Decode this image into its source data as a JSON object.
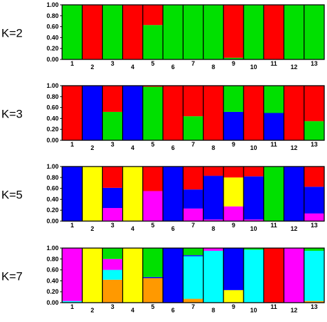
{
  "chart_data": [
    {
      "type": "bar",
      "stacked": true,
      "panel_label": "K=2",
      "categories": [
        "1",
        "2",
        "3",
        "4",
        "5",
        "6",
        "7",
        "8",
        "9",
        "10",
        "11",
        "12",
        "13"
      ],
      "ylim": [
        0,
        1
      ],
      "yticks": [
        "0.00",
        "0.20",
        "0.40",
        "0.60",
        "0.80",
        "1.00"
      ],
      "series": [
        {
          "color": "#00e000",
          "values": [
            1.0,
            0.0,
            1.0,
            0.0,
            0.63,
            1.0,
            1.0,
            1.0,
            0.03,
            1.0,
            0.0,
            1.0,
            1.0
          ]
        },
        {
          "color": "#ff0000",
          "values": [
            0.0,
            1.0,
            0.0,
            1.0,
            0.37,
            0.0,
            0.0,
            0.0,
            0.97,
            0.0,
            1.0,
            0.0,
            0.0
          ]
        }
      ]
    },
    {
      "type": "bar",
      "stacked": true,
      "panel_label": "K=3",
      "categories": [
        "1",
        "2",
        "3",
        "4",
        "5",
        "6",
        "7",
        "8",
        "9",
        "10",
        "11",
        "12",
        "13"
      ],
      "ylim": [
        0,
        1
      ],
      "yticks": [
        "0.00",
        "0.20",
        "0.40",
        "0.60",
        "0.80",
        "1.00"
      ],
      "series": [
        {
          "color": "#00e000",
          "values": [
            0.0,
            0.0,
            0.52,
            0.0,
            0.98,
            0.0,
            0.44,
            0.0,
            0.0,
            0.0,
            0.0,
            0.0,
            0.35
          ]
        },
        {
          "color": "#0000ff",
          "values": [
            0.0,
            1.0,
            0.0,
            1.0,
            0.0,
            0.0,
            0.0,
            0.0,
            0.52,
            0.0,
            0.5,
            0.0,
            0.0
          ]
        },
        {
          "color": "#00e000",
          "values": [
            0.0,
            0.0,
            0.0,
            0.0,
            0.0,
            0.0,
            0.0,
            0.0,
            0.48,
            0.0,
            0.5,
            0.0,
            0.0
          ]
        },
        {
          "color": "#ff0000",
          "values": [
            1.0,
            0.0,
            0.48,
            0.0,
            0.02,
            1.0,
            0.56,
            1.0,
            0.0,
            1.0,
            0.0,
            1.0,
            0.65
          ]
        }
      ]
    },
    {
      "type": "bar",
      "stacked": true,
      "panel_label": "K=5",
      "categories": [
        "1",
        "2",
        "3",
        "4",
        "5",
        "6",
        "7",
        "8",
        "9",
        "10",
        "11",
        "12",
        "13"
      ],
      "ylim": [
        0,
        1
      ],
      "yticks": [
        "0.00",
        "0.20",
        "0.40",
        "0.60",
        "0.80",
        "1.00"
      ],
      "series": [
        {
          "color": "#ff00ff",
          "values": [
            0.0,
            0.0,
            0.24,
            0.0,
            0.55,
            0.0,
            0.23,
            0.03,
            0.27,
            0.03,
            0.0,
            0.0,
            0.14
          ]
        },
        {
          "color": "#ffff00",
          "values": [
            0.0,
            1.0,
            0.0,
            1.0,
            0.0,
            0.0,
            0.0,
            0.0,
            0.53,
            0.0,
            0.0,
            0.0,
            0.0
          ]
        },
        {
          "color": "#0000ff",
          "values": [
            1.0,
            0.0,
            0.37,
            0.0,
            0.0,
            1.0,
            0.35,
            0.8,
            0.0,
            0.79,
            0.0,
            1.0,
            0.49
          ]
        },
        {
          "color": "#00e000",
          "values": [
            0.0,
            0.0,
            0.0,
            0.0,
            0.0,
            0.0,
            0.0,
            0.0,
            0.0,
            0.0,
            1.0,
            0.0,
            0.0
          ]
        },
        {
          "color": "#ff0000",
          "values": [
            0.0,
            0.0,
            0.39,
            0.0,
            0.45,
            0.0,
            0.42,
            0.17,
            0.2,
            0.18,
            0.0,
            0.0,
            0.37
          ]
        }
      ]
    },
    {
      "type": "bar",
      "stacked": true,
      "panel_label": "K=7",
      "categories": [
        "1",
        "2",
        "3",
        "4",
        "5",
        "6",
        "7",
        "8",
        "9",
        "10",
        "11",
        "12",
        "13"
      ],
      "ylim": [
        0,
        1
      ],
      "yticks": [
        "0.00",
        "0.20",
        "0.40",
        "0.60",
        "0.80",
        "1.00"
      ],
      "series": [
        {
          "color": "#00ffff",
          "values": [
            0.03,
            0.0,
            0.0,
            0.0,
            0.0,
            0.0,
            0.0,
            0.0,
            0.0,
            0.0,
            0.0,
            0.0,
            0.0
          ]
        },
        {
          "color": "#ff9900",
          "values": [
            0.0,
            0.0,
            0.42,
            0.0,
            0.45,
            0.0,
            0.07,
            0.0,
            0.0,
            0.0,
            0.0,
            0.0,
            0.03
          ]
        },
        {
          "color": "#ffff00",
          "values": [
            0.0,
            1.0,
            0.0,
            1.0,
            0.0,
            0.0,
            0.0,
            0.0,
            0.23,
            0.0,
            0.0,
            0.0,
            0.0
          ]
        },
        {
          "color": "#00ffff",
          "values": [
            0.0,
            0.0,
            0.18,
            0.0,
            0.0,
            0.0,
            0.78,
            0.95,
            0.0,
            0.97,
            0.0,
            0.0,
            0.92
          ]
        },
        {
          "color": "#0000ff",
          "values": [
            0.0,
            0.0,
            0.0,
            0.0,
            0.02,
            1.0,
            0.02,
            0.0,
            0.77,
            0.0,
            0.0,
            0.0,
            0.0
          ]
        },
        {
          "color": "#ff00ff",
          "values": [
            0.97,
            0.0,
            0.2,
            0.0,
            0.0,
            0.0,
            0.0,
            0.05,
            0.0,
            0.0,
            0.0,
            1.0,
            0.0
          ]
        },
        {
          "color": "#00e000",
          "values": [
            0.0,
            0.0,
            0.2,
            0.0,
            0.53,
            0.0,
            0.13,
            0.0,
            0.0,
            0.03,
            0.0,
            0.0,
            0.05
          ]
        },
        {
          "color": "#ff0000",
          "values": [
            0.0,
            0.0,
            0.0,
            0.0,
            0.0,
            0.0,
            0.0,
            0.0,
            0.0,
            0.0,
            1.0,
            0.0,
            0.0
          ]
        }
      ]
    }
  ]
}
